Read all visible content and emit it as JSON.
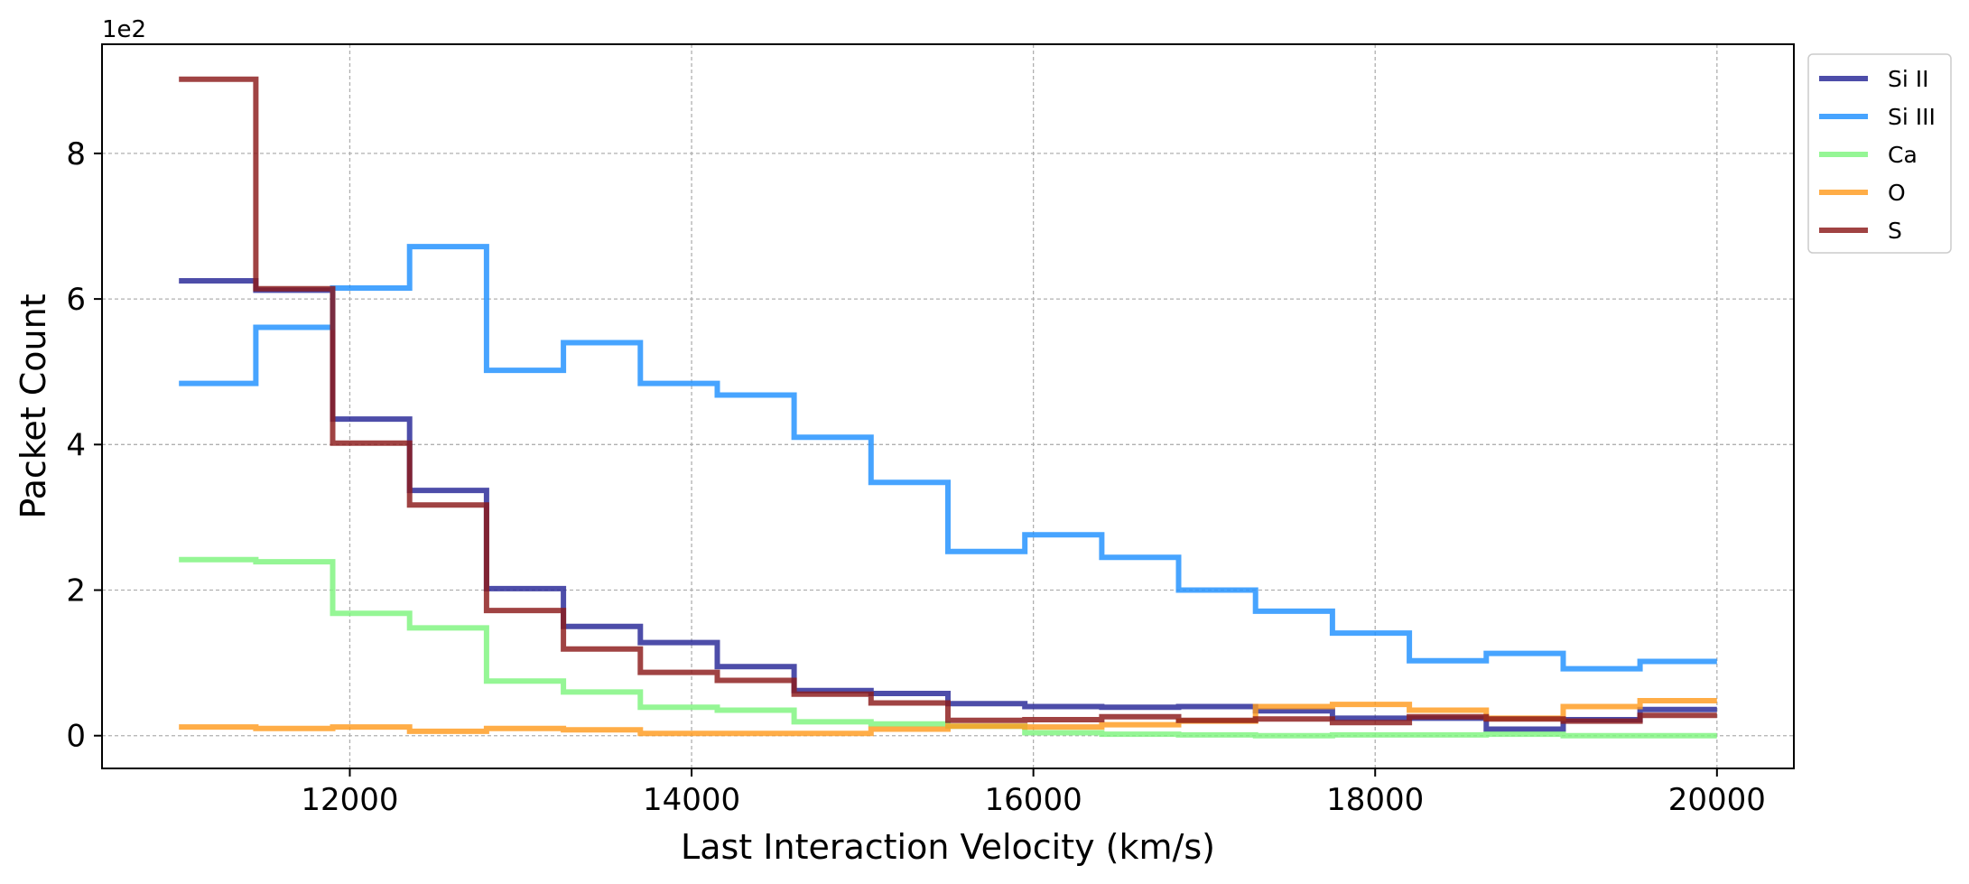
{
  "chart_data": {
    "type": "line",
    "step": true,
    "xlabel": "Last Interaction Velocity (km/s)",
    "ylabel": "Packet Count",
    "y_offset_label": "1e2",
    "xlim": [
      10550,
      20450
    ],
    "ylim": [
      -0.45,
      9.5
    ],
    "x_ticks": [
      12000,
      14000,
      16000,
      18000,
      20000
    ],
    "x_tick_labels": [
      "12000",
      "14000",
      "16000",
      "18000",
      "20000"
    ],
    "y_ticks": [
      0,
      2,
      4,
      6,
      8
    ],
    "y_tick_labels": [
      "0",
      "2",
      "4",
      "6",
      "8"
    ],
    "grid": true,
    "legend_position": "outside upper-right",
    "bin_edges": [
      11000,
      11450,
      11900,
      12350,
      12800,
      13250,
      13700,
      14150,
      14600,
      15050,
      15500,
      15950,
      16400,
      16850,
      17300,
      17750,
      18200,
      18650,
      19100,
      19550,
      20000
    ],
    "series": [
      {
        "name": "Si II",
        "color": "#262696",
        "values": [
          6.25,
          6.12,
          4.35,
          3.37,
          2.02,
          1.5,
          1.28,
          0.95,
          0.62,
          0.58,
          0.44,
          0.4,
          0.39,
          0.4,
          0.34,
          0.24,
          0.24,
          0.09,
          0.22,
          0.36
        ]
      },
      {
        "name": "Si III",
        "color": "#1e90ff",
        "values": [
          4.84,
          5.61,
          6.15,
          6.72,
          5.02,
          5.4,
          4.84,
          4.68,
          4.1,
          3.48,
          2.53,
          2.76,
          2.45,
          2.0,
          1.71,
          1.41,
          1.03,
          1.13,
          0.92,
          1.02
        ]
      },
      {
        "name": "Ca",
        "color": "#7ef47e",
        "values": [
          2.42,
          2.39,
          1.68,
          1.48,
          0.75,
          0.6,
          0.39,
          0.35,
          0.19,
          0.16,
          0.13,
          0.04,
          0.02,
          0.01,
          0.0,
          0.01,
          0.01,
          0.02,
          0.0,
          0.0
        ]
      },
      {
        "name": "O",
        "color": "#ff9b1e",
        "values": [
          0.12,
          0.1,
          0.12,
          0.06,
          0.1,
          0.08,
          0.03,
          0.03,
          0.03,
          0.09,
          0.13,
          0.12,
          0.15,
          0.2,
          0.4,
          0.43,
          0.35,
          0.24,
          0.4,
          0.48
        ]
      },
      {
        "name": "S",
        "color": "#8b1a1a",
        "values": [
          9.02,
          6.14,
          4.02,
          3.17,
          1.72,
          1.19,
          0.87,
          0.76,
          0.57,
          0.45,
          0.21,
          0.22,
          0.26,
          0.21,
          0.23,
          0.18,
          0.26,
          0.23,
          0.2,
          0.28
        ]
      }
    ]
  }
}
